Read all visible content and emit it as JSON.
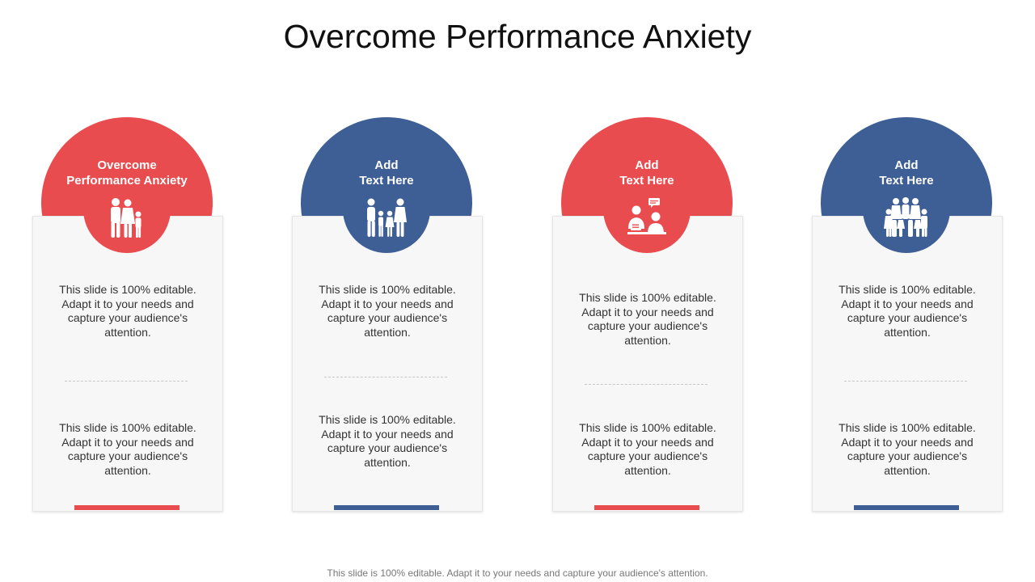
{
  "title": "Overcome Performance Anxiety",
  "colors": {
    "red": "#e84c4f",
    "blue": "#3e5f95"
  },
  "columns": [
    {
      "heading": "Overcome\nPerformance Anxiety",
      "color": "red",
      "icon": "family-icon",
      "text_top": "This slide is 100% editable. Adapt it to your needs and capture your audience's attention.",
      "text_bottom": "This slide is 100% editable. Adapt it to your needs and capture your audience's attention."
    },
    {
      "heading": "Add\nText Here",
      "color": "blue",
      "icon": "family-four-icon",
      "text_top": "This slide is 100% editable. Adapt it to your needs and capture your audience's attention.",
      "text_bottom": "This slide is 100% editable. Adapt it to your needs and capture your audience's attention."
    },
    {
      "heading": "Add\nText Here",
      "color": "red",
      "icon": "counseling-icon",
      "text_top": "This slide is 100% editable. Adapt it to your needs and capture your audience's attention.",
      "text_bottom": "This slide is 100% editable. Adapt it to your needs and capture your audience's attention."
    },
    {
      "heading": "Add\nText Here",
      "color": "blue",
      "icon": "large-family-icon",
      "text_top": "This slide is 100% editable. Adapt it to your needs and capture your audience's attention.",
      "text_bottom": "This slide is 100% editable. Adapt it to your needs and capture your audience's attention."
    }
  ],
  "footer": "This slide is 100% editable. Adapt it to your needs and capture your audience's attention."
}
